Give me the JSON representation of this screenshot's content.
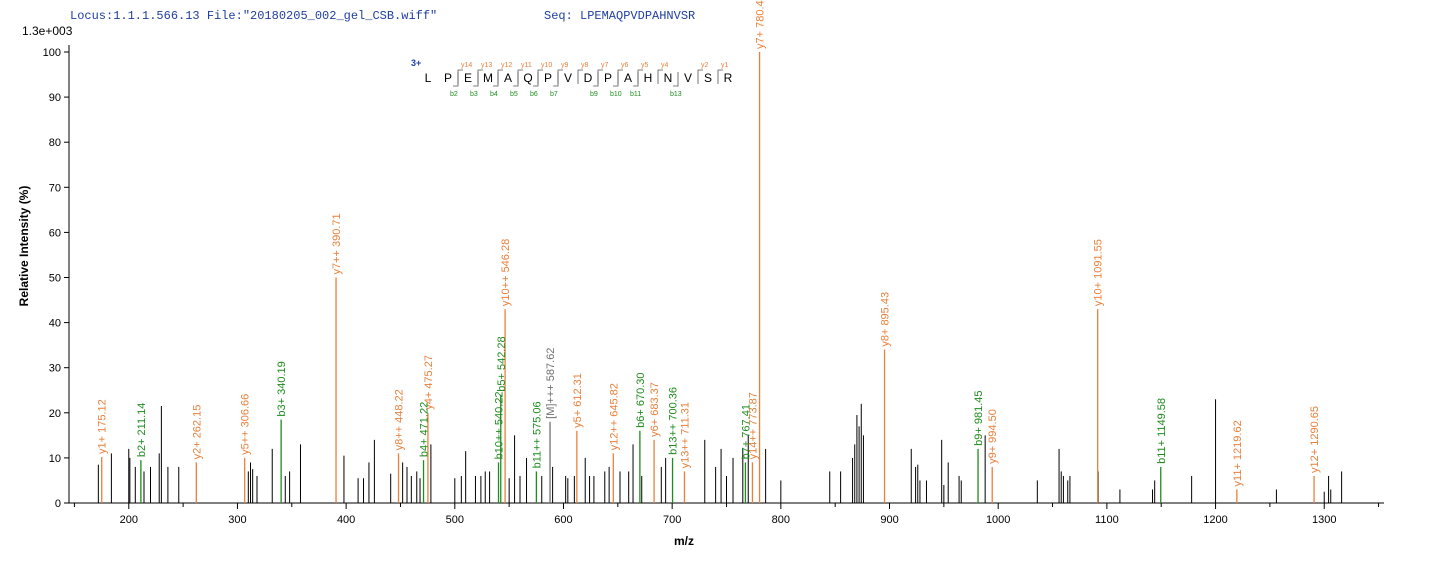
{
  "chart_data": {
    "type": "spectrum",
    "title": "Locus:1.1.1.566.13 File:\"20180205_002_gel_CSB.wiff\"",
    "subtitle": "Seq: LPEMAQPVDPAHNVSR",
    "scale_label": "1.3e+003",
    "xlabel": "m/z",
    "ylabel": "Relative   Intensity (%)",
    "xlim": [
      145,
      1355
    ],
    "ylim": [
      0,
      100
    ],
    "xticks": [
      200,
      300,
      400,
      500,
      600,
      700,
      800,
      900,
      1000,
      1100,
      1200,
      1300
    ],
    "xticks_minor": [
      150,
      250,
      350,
      450,
      550,
      650,
      750,
      850,
      950,
      1050,
      1150,
      1250,
      1350
    ],
    "yticks": [
      0,
      10,
      20,
      30,
      40,
      50,
      60,
      70,
      80,
      90,
      100
    ],
    "peptide": {
      "charge": "3+",
      "sequence": [
        "L",
        "P",
        "E",
        "M",
        "A",
        "Q",
        "P",
        "V",
        "D",
        "P",
        "A",
        "H",
        "N",
        "V",
        "S",
        "R"
      ],
      "y_color": "#e8803c",
      "b_color": "#1e8c1e",
      "y_ions": {
        "labels": [
          "y14",
          "y13",
          "y12",
          "y11",
          "y10",
          "y9",
          "y8",
          "y7",
          "y6",
          "y5",
          "y4",
          "y2",
          "y1"
        ],
        "after": [
          2,
          3,
          4,
          5,
          6,
          7,
          8,
          9,
          10,
          11,
          12,
          14,
          15
        ]
      },
      "b_ions": {
        "labels": [
          "b2",
          "b3",
          "b4",
          "b5",
          "b6",
          "b7",
          "b9",
          "b10",
          "b11",
          "b13"
        ],
        "after": [
          2,
          3,
          4,
          5,
          6,
          7,
          9,
          10,
          11,
          13
        ]
      }
    },
    "annotated_groups": [
      {
        "color": "#e8803c",
        "x": [
          175.12,
          262.15,
          306.66,
          390.71,
          448.22,
          475.27,
          546.28,
          612.31,
          645.82,
          683.37,
          711.31,
          773.87,
          780.41,
          895.43,
          994.5,
          1091.55,
          1219.62,
          1290.65
        ],
        "values": [
          10.2,
          9,
          10,
          50,
          11,
          20,
          43,
          16,
          11,
          14,
          7,
          9,
          100,
          34,
          8,
          43,
          3,
          6
        ],
        "labels": [
          "y1+ 175.12",
          "y2+ 262.15",
          "y5++ 306.66",
          "y7++ 390.71",
          "y8++ 448.22",
          "y4+ 475.27",
          "y10++ 546.28",
          "y5+ 612.31",
          "y12++ 645.82",
          "y6+ 683.37",
          "y13++ 711.31",
          "y14++ 773.87",
          "y7+ 780.41",
          "y8+ 895.43",
          "y9+ 994.50",
          "y10+ 1091.55",
          "y11+ 1219.62",
          "y12+ 1290.65"
        ]
      },
      {
        "color": "#1e8c1e",
        "x": [
          211.14,
          340.19,
          471.22,
          540.22,
          542.28,
          575.06,
          670.3,
          700.36,
          767.41,
          981.45,
          1149.58
        ],
        "values": [
          9.5,
          18.5,
          9.5,
          9,
          24,
          7,
          16,
          10,
          9,
          12,
          8
        ],
        "labels": [
          "b2+ 211.14",
          "b3+ 340.19",
          "b4+ 471.22",
          "b10++ 540.22",
          "b5+ 542.28",
          "b11++ 575.06",
          "b6+ 670.30",
          "b13++ 700.36",
          "b7+ 767.41",
          "b9+ 981.45",
          "b11+ 1149.58"
        ]
      },
      {
        "color": "#707070",
        "x": [
          587.62
        ],
        "values": [
          18
        ],
        "labels": [
          "[M]+++ 587.62"
        ]
      }
    ],
    "peaks": {
      "color": "#000000",
      "x": [
        172,
        184,
        200,
        201,
        206,
        214,
        220,
        228,
        230,
        236,
        246,
        310,
        312,
        314,
        318,
        332,
        344,
        348,
        358,
        398,
        411,
        416,
        421,
        426,
        441,
        452,
        456,
        460,
        465,
        468,
        478,
        500,
        506,
        510,
        519,
        524,
        528,
        532,
        550,
        555,
        560,
        566,
        580,
        590,
        602,
        604,
        610,
        620,
        624,
        628,
        638,
        642,
        652,
        660,
        664,
        672,
        690,
        694,
        730,
        740,
        745,
        750,
        756,
        765,
        770,
        786,
        800,
        845,
        855,
        866,
        868,
        870,
        872,
        874,
        876,
        920,
        924,
        926,
        928,
        934,
        948,
        950,
        954,
        964,
        966,
        988,
        1036,
        1056,
        1058,
        1060,
        1064,
        1066,
        1092,
        1112,
        1142,
        1144,
        1178,
        1200,
        1256,
        1300,
        1304,
        1306,
        1316
      ],
      "values": [
        8.5,
        11,
        12,
        10,
        8,
        7,
        8,
        11,
        21.5,
        8,
        8,
        7,
        9,
        7.5,
        6,
        12,
        6,
        7,
        13,
        10.5,
        5.5,
        5.5,
        9,
        14,
        6.5,
        9,
        8,
        6,
        7,
        5.5,
        13,
        5.5,
        6,
        11.5,
        6,
        6,
        7,
        7,
        5.5,
        15,
        6,
        10,
        6,
        8,
        6,
        5.5,
        6,
        10,
        6,
        6,
        7,
        8,
        7,
        7,
        13,
        6,
        8,
        10,
        14,
        8,
        12,
        6,
        10,
        12,
        15,
        12,
        5,
        7,
        7,
        10,
        13,
        19.5,
        17,
        22,
        15,
        12,
        8,
        8.5,
        5,
        5,
        14,
        4,
        9,
        6,
        5,
        15,
        5,
        12,
        7,
        6,
        5,
        6,
        7,
        3,
        3,
        5,
        6,
        23,
        3,
        2.5,
        6,
        3,
        7
      ]
    }
  }
}
